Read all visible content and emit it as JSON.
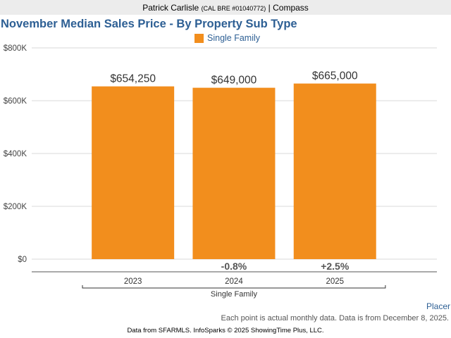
{
  "header": {
    "agent_name": "Patrick Carlisle",
    "license": "(CAL BRE #01040772)",
    "separator": "|",
    "brokerage": "Compass"
  },
  "colors": {
    "bar": "#f28e1d",
    "title": "#2d5f94",
    "grid": "#d9d9d9"
  },
  "chart_data": {
    "type": "bar",
    "title": "November Median Sales Price - By Property Sub Type",
    "categories": [
      "2023",
      "2024",
      "2025"
    ],
    "group_label": "Single Family",
    "series": [
      {
        "name": "Single Family",
        "values": [
          654250,
          649000,
          665000
        ],
        "labels": [
          "$654,250",
          "$649,000",
          "$665,000"
        ]
      }
    ],
    "change_labels": [
      "",
      "-0.8%",
      "+2.5%"
    ],
    "y_ticks": [
      0,
      200000,
      400000,
      600000,
      800000
    ],
    "y_tick_labels": [
      "$0",
      "$200K",
      "$400K",
      "$600K",
      "$800K"
    ],
    "ylim": [
      0,
      800000
    ],
    "xlabel": "",
    "ylabel": "",
    "legend": "top-center"
  },
  "footer": {
    "placer_link": "Placer",
    "note": "Each point is actual monthly data. Data is from December 8, 2025.",
    "source": "Data from SFARMLS. InfoSparks © 2025 ShowingTime Plus, LLC."
  }
}
